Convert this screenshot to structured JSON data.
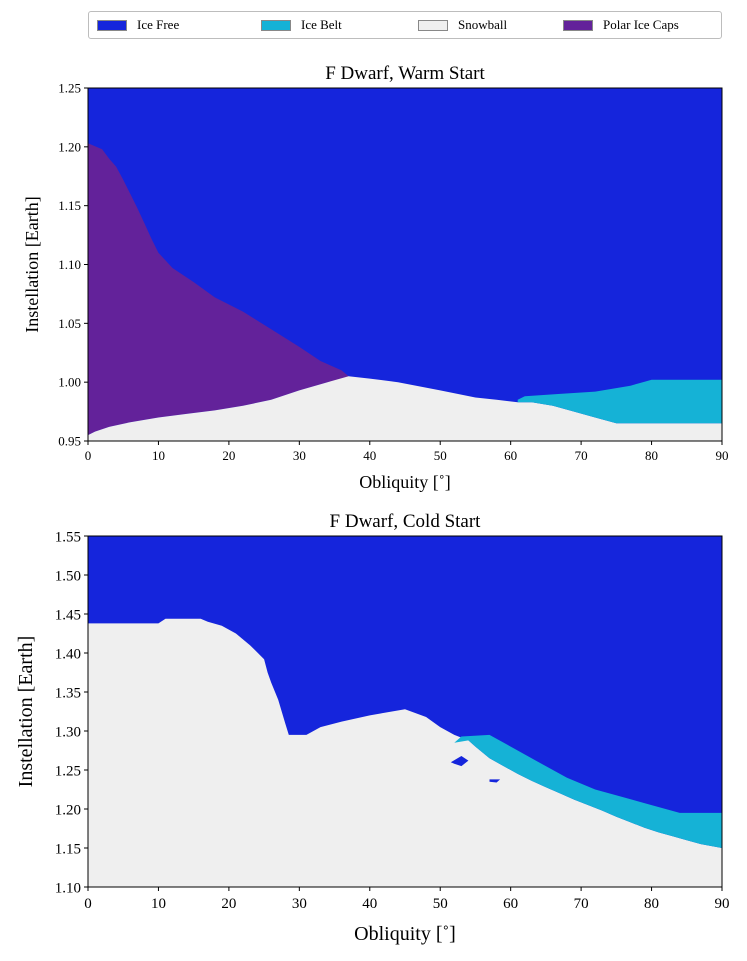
{
  "legend": {
    "items": [
      {
        "label": "Ice Free",
        "color": "#1525dc"
      },
      {
        "label": "Ice Belt",
        "color": "#15b2d6"
      },
      {
        "label": "Snowball",
        "color": "#efefef"
      },
      {
        "label": "Polar Ice Caps",
        "color": "#63229a"
      }
    ]
  },
  "chart_data": [
    {
      "type": "area",
      "title": "F Dwarf, Warm Start",
      "xlabel": "Obliquity [$^\\circ$]",
      "xlabel_display": "Obliquity [˚]",
      "ylabel": "Instellation [Earth]",
      "xlim": [
        0,
        90
      ],
      "ylim": [
        0.95,
        1.25
      ],
      "xticks": [
        0,
        10,
        20,
        30,
        40,
        50,
        60,
        70,
        80,
        90
      ],
      "yticks": [
        "0.95",
        "1.00",
        "1.05",
        "1.10",
        "1.15",
        "1.20",
        "1.25"
      ],
      "background_regime": "Ice Free",
      "regions": [
        {
          "name": "Polar Ice Caps",
          "color": "#63229a",
          "polygon": [
            [
              0,
              1.203
            ],
            [
              2,
              1.198
            ],
            [
              3,
              1.19
            ],
            [
              4,
              1.183
            ],
            [
              5,
              1.172
            ],
            [
              6,
              1.16
            ],
            [
              7,
              1.148
            ],
            [
              8,
              1.135
            ],
            [
              9,
              1.122
            ],
            [
              10,
              1.11
            ],
            [
              12,
              1.097
            ],
            [
              15,
              1.085
            ],
            [
              18,
              1.072
            ],
            [
              22,
              1.06
            ],
            [
              26,
              1.045
            ],
            [
              30,
              1.03
            ],
            [
              33,
              1.018
            ],
            [
              36,
              1.01
            ],
            [
              37,
              1.005
            ],
            [
              37,
              1.003
            ],
            [
              34,
              1.0
            ],
            [
              30,
              0.993
            ],
            [
              26,
              0.985
            ],
            [
              22,
              0.98
            ],
            [
              18,
              0.976
            ],
            [
              14,
              0.973
            ],
            [
              10,
              0.97
            ],
            [
              6,
              0.966
            ],
            [
              3,
              0.962
            ],
            [
              1,
              0.958
            ],
            [
              0,
              0.955
            ]
          ]
        },
        {
          "name": "Snowball",
          "color": "#efefef",
          "polygon": [
            [
              0,
              0.955
            ],
            [
              1,
              0.958
            ],
            [
              3,
              0.962
            ],
            [
              6,
              0.966
            ],
            [
              10,
              0.97
            ],
            [
              14,
              0.973
            ],
            [
              18,
              0.976
            ],
            [
              22,
              0.98
            ],
            [
              26,
              0.985
            ],
            [
              30,
              0.993
            ],
            [
              34,
              1.0
            ],
            [
              37,
              1.005
            ],
            [
              40,
              1.003
            ],
            [
              44,
              1.0
            ],
            [
              50,
              0.993
            ],
            [
              55,
              0.987
            ],
            [
              58,
              0.985
            ],
            [
              61,
              0.983
            ],
            [
              63,
              0.983
            ],
            [
              66,
              0.98
            ],
            [
              69,
              0.975
            ],
            [
              72,
              0.97
            ],
            [
              75,
              0.965
            ],
            [
              90,
              0.965
            ],
            [
              90,
              0.95
            ],
            [
              0,
              0.95
            ]
          ]
        },
        {
          "name": "Ice Belt",
          "color": "#15b2d6",
          "polygon": [
            [
              61,
              0.983
            ],
            [
              63,
              0.983
            ],
            [
              66,
              0.98
            ],
            [
              69,
              0.975
            ],
            [
              72,
              0.97
            ],
            [
              75,
              0.965
            ],
            [
              90,
              0.965
            ],
            [
              90,
              1.002
            ],
            [
              80,
              1.002
            ],
            [
              77,
              0.997
            ],
            [
              72,
              0.992
            ],
            [
              67,
              0.99
            ],
            [
              62,
              0.988
            ],
            [
              61,
              0.985
            ]
          ]
        }
      ]
    },
    {
      "type": "area",
      "title": "F Dwarf, Cold Start",
      "xlabel": "Obliquity [$^\\circ$]",
      "xlabel_display": "Obliquity [˚]",
      "ylabel": "Instellation [Earth]",
      "xlim": [
        0,
        90
      ],
      "ylim": [
        1.1,
        1.55
      ],
      "xticks": [
        0,
        10,
        20,
        30,
        40,
        50,
        60,
        70,
        80,
        90
      ],
      "yticks": [
        "1.10",
        "1.15",
        "1.20",
        "1.25",
        "1.30",
        "1.35",
        "1.40",
        "1.45",
        "1.50",
        "1.55"
      ],
      "background_regime": "Ice Free",
      "regions": [
        {
          "name": "Snowball",
          "color": "#efefef",
          "polygon": [
            [
              0,
              1.438
            ],
            [
              10,
              1.438
            ],
            [
              11,
              1.444
            ],
            [
              16,
              1.444
            ],
            [
              17,
              1.44
            ],
            [
              19,
              1.435
            ],
            [
              21,
              1.425
            ],
            [
              23,
              1.41
            ],
            [
              25,
              1.392
            ],
            [
              25.5,
              1.375
            ],
            [
              26,
              1.362
            ],
            [
              27,
              1.34
            ],
            [
              28,
              1.31
            ],
            [
              28.5,
              1.295
            ],
            [
              31,
              1.295
            ],
            [
              33,
              1.305
            ],
            [
              36,
              1.312
            ],
            [
              40,
              1.32
            ],
            [
              45,
              1.328
            ],
            [
              48,
              1.318
            ],
            [
              50,
              1.305
            ],
            [
              52,
              1.295
            ],
            [
              54,
              1.288
            ],
            [
              55,
              1.28
            ],
            [
              57,
              1.265
            ],
            [
              59,
              1.255
            ],
            [
              61,
              1.245
            ],
            [
              63,
              1.236
            ],
            [
              65,
              1.228
            ],
            [
              67,
              1.22
            ],
            [
              69,
              1.212
            ],
            [
              71,
              1.205
            ],
            [
              73,
              1.198
            ],
            [
              75,
              1.19
            ],
            [
              77,
              1.183
            ],
            [
              79,
              1.176
            ],
            [
              81,
              1.17
            ],
            [
              83,
              1.165
            ],
            [
              85,
              1.16
            ],
            [
              87,
              1.155
            ],
            [
              90,
              1.15
            ],
            [
              90,
              1.1
            ],
            [
              0,
              1.1
            ]
          ]
        },
        {
          "name": "Ice Belt",
          "color": "#15b2d6",
          "polygon": [
            [
              52,
              1.285
            ],
            [
              54,
              1.288
            ],
            [
              55,
              1.28
            ],
            [
              57,
              1.265
            ],
            [
              59,
              1.255
            ],
            [
              61,
              1.245
            ],
            [
              63,
              1.236
            ],
            [
              65,
              1.228
            ],
            [
              67,
              1.22
            ],
            [
              69,
              1.212
            ],
            [
              71,
              1.205
            ],
            [
              73,
              1.198
            ],
            [
              75,
              1.19
            ],
            [
              77,
              1.183
            ],
            [
              79,
              1.176
            ],
            [
              81,
              1.17
            ],
            [
              83,
              1.165
            ],
            [
              85,
              1.16
            ],
            [
              87,
              1.155
            ],
            [
              90,
              1.15
            ],
            [
              90,
              1.195
            ],
            [
              84,
              1.195
            ],
            [
              80,
              1.205
            ],
            [
              76,
              1.215
            ],
            [
              72,
              1.225
            ],
            [
              68,
              1.24
            ],
            [
              64,
              1.26
            ],
            [
              60,
              1.28
            ],
            [
              57,
              1.295
            ],
            [
              53,
              1.293
            ]
          ]
        },
        {
          "name": "Ice Free",
          "color": "#1525dc",
          "polygon": [
            [
              51.5,
              1.26
            ],
            [
              53,
              1.268
            ],
            [
              54,
              1.262
            ],
            [
              53,
              1.255
            ],
            [
              52,
              1.258
            ]
          ]
        },
        {
          "name": "Ice Free",
          "color": "#1525dc",
          "polygon": [
            [
              57,
              1.238
            ],
            [
              58.5,
              1.238
            ],
            [
              58,
              1.234
            ],
            [
              57,
              1.235
            ]
          ]
        }
      ]
    }
  ]
}
